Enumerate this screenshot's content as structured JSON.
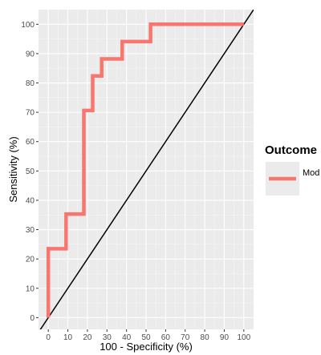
{
  "chart_data": {
    "type": "line",
    "xlabel": "100 - Specificity (%)",
    "ylabel": "Sensitivity (%)",
    "xlim": [
      -5,
      105
    ],
    "ylim": [
      -4,
      105
    ],
    "x_ticks": [
      0,
      10,
      20,
      30,
      40,
      50,
      60,
      70,
      80,
      90,
      100
    ],
    "y_ticks": [
      0,
      10,
      20,
      30,
      40,
      50,
      60,
      70,
      80,
      90,
      100
    ],
    "grid": true,
    "legend": {
      "title": "Outcome",
      "position": "right"
    },
    "series": [
      {
        "name": "Mod",
        "color": "#f8766d",
        "step": true,
        "x": [
          0,
          0,
          9.1,
          9.1,
          18.2,
          18.2,
          22.7,
          22.7,
          27.3,
          27.3,
          37.8,
          37.8,
          52.3,
          52.3,
          100
        ],
        "y": [
          0,
          23.5,
          23.5,
          35.3,
          35.3,
          70.6,
          70.6,
          82.4,
          82.4,
          88.2,
          88.2,
          94.1,
          94.1,
          100,
          100
        ]
      }
    ],
    "reference_line": {
      "x": [
        -5,
        105
      ],
      "y": [
        -5,
        105
      ],
      "color": "#000000"
    }
  },
  "colors": {
    "panel_background": "#ebebeb",
    "grid_major": "#ffffff",
    "grid_minor": "#f5f5f5"
  }
}
